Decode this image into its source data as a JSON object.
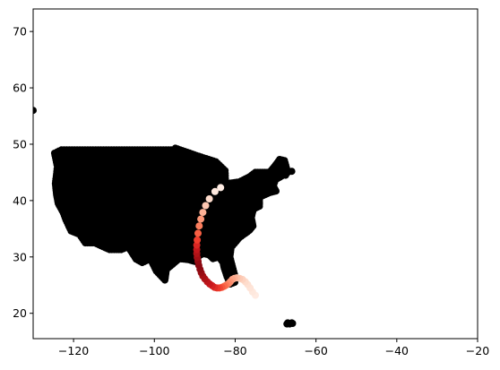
{
  "chart_data": {
    "type": "scatter",
    "title": "",
    "xlabel": "",
    "ylabel": "",
    "xlim": [
      -130,
      -20
    ],
    "ylim": [
      15.5,
      74
    ],
    "grid": false,
    "legend": "none",
    "x_ticks": [
      -120,
      -100,
      -80,
      -60,
      -40,
      -20
    ],
    "y_ticks": [
      20,
      30,
      40,
      50,
      60,
      70
    ],
    "x_tick_labels": [
      "−120",
      "−100",
      "−80",
      "−60",
      "−40",
      "−20"
    ],
    "y_tick_labels": [
      "20",
      "30",
      "40",
      "50",
      "60",
      "70"
    ],
    "series": [
      {
        "role": "background-points",
        "color": "#000000",
        "contour_lonlat": [
          [
            -124.7,
            48.4
          ],
          [
            -123.0,
            49.0
          ],
          [
            -110.0,
            49.0
          ],
          [
            -95.2,
            49.0
          ],
          [
            -94.8,
            49.3
          ],
          [
            -89.6,
            48.0
          ],
          [
            -84.8,
            46.9
          ],
          [
            -82.5,
            45.3
          ],
          [
            -82.4,
            43.0
          ],
          [
            -79.0,
            43.3
          ],
          [
            -76.5,
            44.2
          ],
          [
            -75.0,
            45.0
          ],
          [
            -71.5,
            45.0
          ],
          [
            -70.0,
            46.3
          ],
          [
            -69.0,
            47.3
          ],
          [
            -67.8,
            47.1
          ],
          [
            -67.0,
            45.0
          ],
          [
            -70.0,
            43.7
          ],
          [
            -70.6,
            42.6
          ],
          [
            -69.9,
            41.7
          ],
          [
            -71.5,
            41.4
          ],
          [
            -74.0,
            40.6
          ],
          [
            -74.0,
            39.0
          ],
          [
            -75.5,
            38.5
          ],
          [
            -76.0,
            37.0
          ],
          [
            -75.6,
            35.5
          ],
          [
            -76.5,
            34.7
          ],
          [
            -79.0,
            33.4
          ],
          [
            -81.0,
            31.7
          ],
          [
            -81.3,
            30.0
          ],
          [
            -80.2,
            27.0
          ],
          [
            -80.1,
            25.5
          ],
          [
            -81.2,
            25.2
          ],
          [
            -82.0,
            26.5
          ],
          [
            -82.7,
            28.0
          ],
          [
            -83.0,
            29.0
          ],
          [
            -84.0,
            30.0
          ],
          [
            -85.5,
            29.7
          ],
          [
            -86.5,
            30.4
          ],
          [
            -88.0,
            30.6
          ],
          [
            -89.4,
            30.0
          ],
          [
            -89.2,
            29.1
          ],
          [
            -90.0,
            29.2
          ],
          [
            -91.5,
            29.5
          ],
          [
            -93.8,
            29.7
          ],
          [
            -95.0,
            29.0
          ],
          [
            -97.0,
            27.8
          ],
          [
            -97.4,
            25.9
          ],
          [
            -99.5,
            27.5
          ],
          [
            -101.0,
            29.7
          ],
          [
            -103.0,
            29.0
          ],
          [
            -104.5,
            29.6
          ],
          [
            -106.5,
            31.8
          ],
          [
            -108.2,
            31.3
          ],
          [
            -111.1,
            31.3
          ],
          [
            -114.8,
            32.5
          ],
          [
            -117.1,
            32.5
          ],
          [
            -118.5,
            34.0
          ],
          [
            -120.6,
            34.6
          ],
          [
            -121.9,
            36.6
          ],
          [
            -122.5,
            37.8
          ],
          [
            -123.8,
            39.5
          ],
          [
            -124.2,
            41.0
          ],
          [
            -124.5,
            43.0
          ],
          [
            -124.0,
            46.0
          ]
        ],
        "extra_points_lonlat": [
          [
            -130.0,
            56.0
          ],
          [
            -68.0,
            47.0
          ],
          [
            -66.0,
            45.2
          ],
          [
            -67.5,
            44.5
          ],
          [
            -67.0,
            18.3
          ],
          [
            -66.0,
            18.3
          ],
          [
            -65.8,
            18.2
          ],
          [
            -66.5,
            18.1
          ],
          [
            -67.2,
            18.1
          ]
        ]
      },
      {
        "role": "track",
        "colormap": "Reds",
        "points": [
          [
            -75.0,
            23.2,
            0.06
          ],
          [
            -75.7,
            23.8,
            0.08
          ],
          [
            -76.3,
            24.5,
            0.1
          ],
          [
            -76.9,
            25.1,
            0.12
          ],
          [
            -77.5,
            25.6,
            0.14
          ],
          [
            -78.2,
            26.0,
            0.17
          ],
          [
            -78.9,
            26.2,
            0.2
          ],
          [
            -79.6,
            26.3,
            0.24
          ],
          [
            -80.2,
            26.2,
            0.28
          ],
          [
            -80.7,
            26.0,
            0.32
          ],
          [
            -81.2,
            25.6,
            0.36
          ],
          [
            -81.6,
            25.3,
            0.4
          ],
          [
            -82.2,
            25.0,
            0.45
          ],
          [
            -82.7,
            24.8,
            0.5
          ],
          [
            -83.3,
            24.6,
            0.55
          ],
          [
            -83.9,
            24.5,
            0.6
          ],
          [
            -84.5,
            24.5,
            0.64
          ],
          [
            -85.1,
            24.6,
            0.68
          ],
          [
            -85.7,
            24.9,
            0.72
          ],
          [
            -86.3,
            25.2,
            0.76
          ],
          [
            -86.9,
            25.6,
            0.8
          ],
          [
            -87.5,
            26.1,
            0.84
          ],
          [
            -88.0,
            26.6,
            0.87
          ],
          [
            -88.4,
            27.2,
            0.9
          ],
          [
            -88.7,
            27.8,
            0.92
          ],
          [
            -89.0,
            28.5,
            0.93
          ],
          [
            -89.2,
            29.2,
            0.91
          ],
          [
            -89.4,
            29.9,
            0.88
          ],
          [
            -89.5,
            30.6,
            0.84
          ],
          [
            -89.5,
            31.3,
            0.78
          ],
          [
            -89.5,
            32.1,
            0.7
          ],
          [
            -89.4,
            33.0,
            0.62
          ],
          [
            -89.2,
            34.2,
            0.53
          ],
          [
            -88.9,
            35.5,
            0.44
          ],
          [
            -88.5,
            36.7,
            0.36
          ],
          [
            -88.0,
            37.9,
            0.28
          ],
          [
            -87.3,
            39.1,
            0.21
          ],
          [
            -86.4,
            40.3,
            0.14
          ],
          [
            -85.0,
            41.6,
            0.08
          ],
          [
            -83.6,
            42.3,
            0.05
          ]
        ]
      }
    ]
  }
}
